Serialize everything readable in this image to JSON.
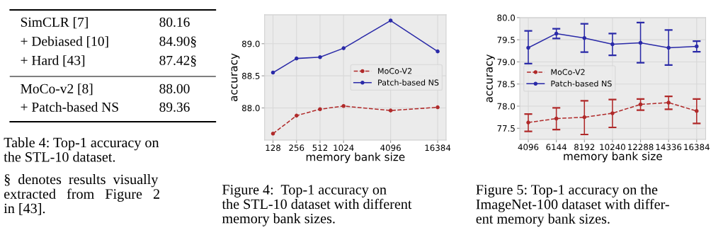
{
  "chart_data": [
    {
      "type": "other",
      "annotations": [
        "SimCLR [7]",
        "80.16",
        "+ Debiased [10]",
        "84.90§",
        "+ Hard [43]",
        "87.42§",
        "MoCo-v2 [8]",
        "88.00",
        "+ Patch-based NS",
        "89.36",
        "Table 4: Top-1 accuracy on\nthe STL-10 dataset.",
        "§  denotes  results  visually\nextracted   from   Figure   2\nin [43]."
      ]
    },
    {
      "type": "line",
      "xlabel": "memory bank size",
      "ylabel": "accuracy",
      "log": "x",
      "x": [
        128,
        256,
        512,
        1024,
        4096,
        16384
      ],
      "xlim": [
        100,
        21000
      ],
      "xticks": [
        128,
        256,
        512,
        1024,
        4096,
        16384
      ],
      "ylim": [
        87.5,
        89.45
      ],
      "yticks": [
        {
          "value": 88,
          "label": "88.0"
        },
        88.5,
        {
          "value": 89,
          "label": "89.0"
        }
      ],
      "grid": true,
      "legend": "right",
      "marker": "circle",
      "series": [
        {
          "name": "MoCo-V2",
          "color": "#b02a2a",
          "line_style": "dashed",
          "values": [
            87.6,
            87.88,
            87.98,
            88.03,
            87.96,
            88.01
          ]
        },
        {
          "name": "Patch-based NS",
          "color": "#2a2aa8",
          "line_style": "solid",
          "values": [
            88.55,
            88.77,
            88.79,
            88.93,
            89.36,
            88.88
          ]
        }
      ],
      "annotations": [
        "Figure 4:  Top-1 accuracy on\nthe STL-10 dataset with different\nmemory bank sizes."
      ]
    },
    {
      "type": "line",
      "xlabel": "memory bank size",
      "ylabel": "accuracy",
      "x": [
        4096,
        6144,
        8192,
        10240,
        12288,
        14336,
        16384
      ],
      "xlim": [
        3480,
        17040
      ],
      "xticks": [
        4096,
        6144,
        8192,
        10240,
        12288,
        14336,
        16384
      ],
      "ylim": [
        77.25,
        80.0
      ],
      "yticks": [
        77.5,
        {
          "value": 78,
          "label": "78.0"
        },
        78.5,
        {
          "value": 79,
          "label": "79.0"
        },
        79.5,
        {
          "value": 80,
          "label": "80.0"
        }
      ],
      "grid": true,
      "legend": "left",
      "marker": "circle",
      "series": [
        {
          "name": "MoCo-V2",
          "color": "#b02a2a",
          "line_style": "dashed",
          "values": [
            77.63,
            77.72,
            77.75,
            77.84,
            78.04,
            78.08,
            77.89
          ],
          "errors": [
            [
              77.43,
              77.82
            ],
            [
              77.47,
              77.96
            ],
            [
              77.36,
              78.12
            ],
            [
              77.52,
              78.15
            ],
            [
              77.91,
              78.16
            ],
            [
              77.93,
              78.22
            ],
            [
              77.61,
              78.16
            ]
          ]
        },
        {
          "name": "Patch-based NS",
          "color": "#2a2aa8",
          "line_style": "solid",
          "values": [
            79.32,
            79.64,
            79.54,
            79.4,
            79.43,
            79.32,
            79.35
          ],
          "errors": [
            [
              78.96,
              79.7
            ],
            [
              79.53,
              79.75
            ],
            [
              79.22,
              79.86
            ],
            [
              79.15,
              79.64
            ],
            [
              78.98,
              79.89
            ],
            [
              78.93,
              79.72
            ],
            [
              79.23,
              79.47
            ]
          ]
        }
      ],
      "annotations": [
        "Figure 5: Top-1 accuracy on the\nImageNet-100 dataset with differ-\nent memory bank sizes."
      ]
    }
  ]
}
